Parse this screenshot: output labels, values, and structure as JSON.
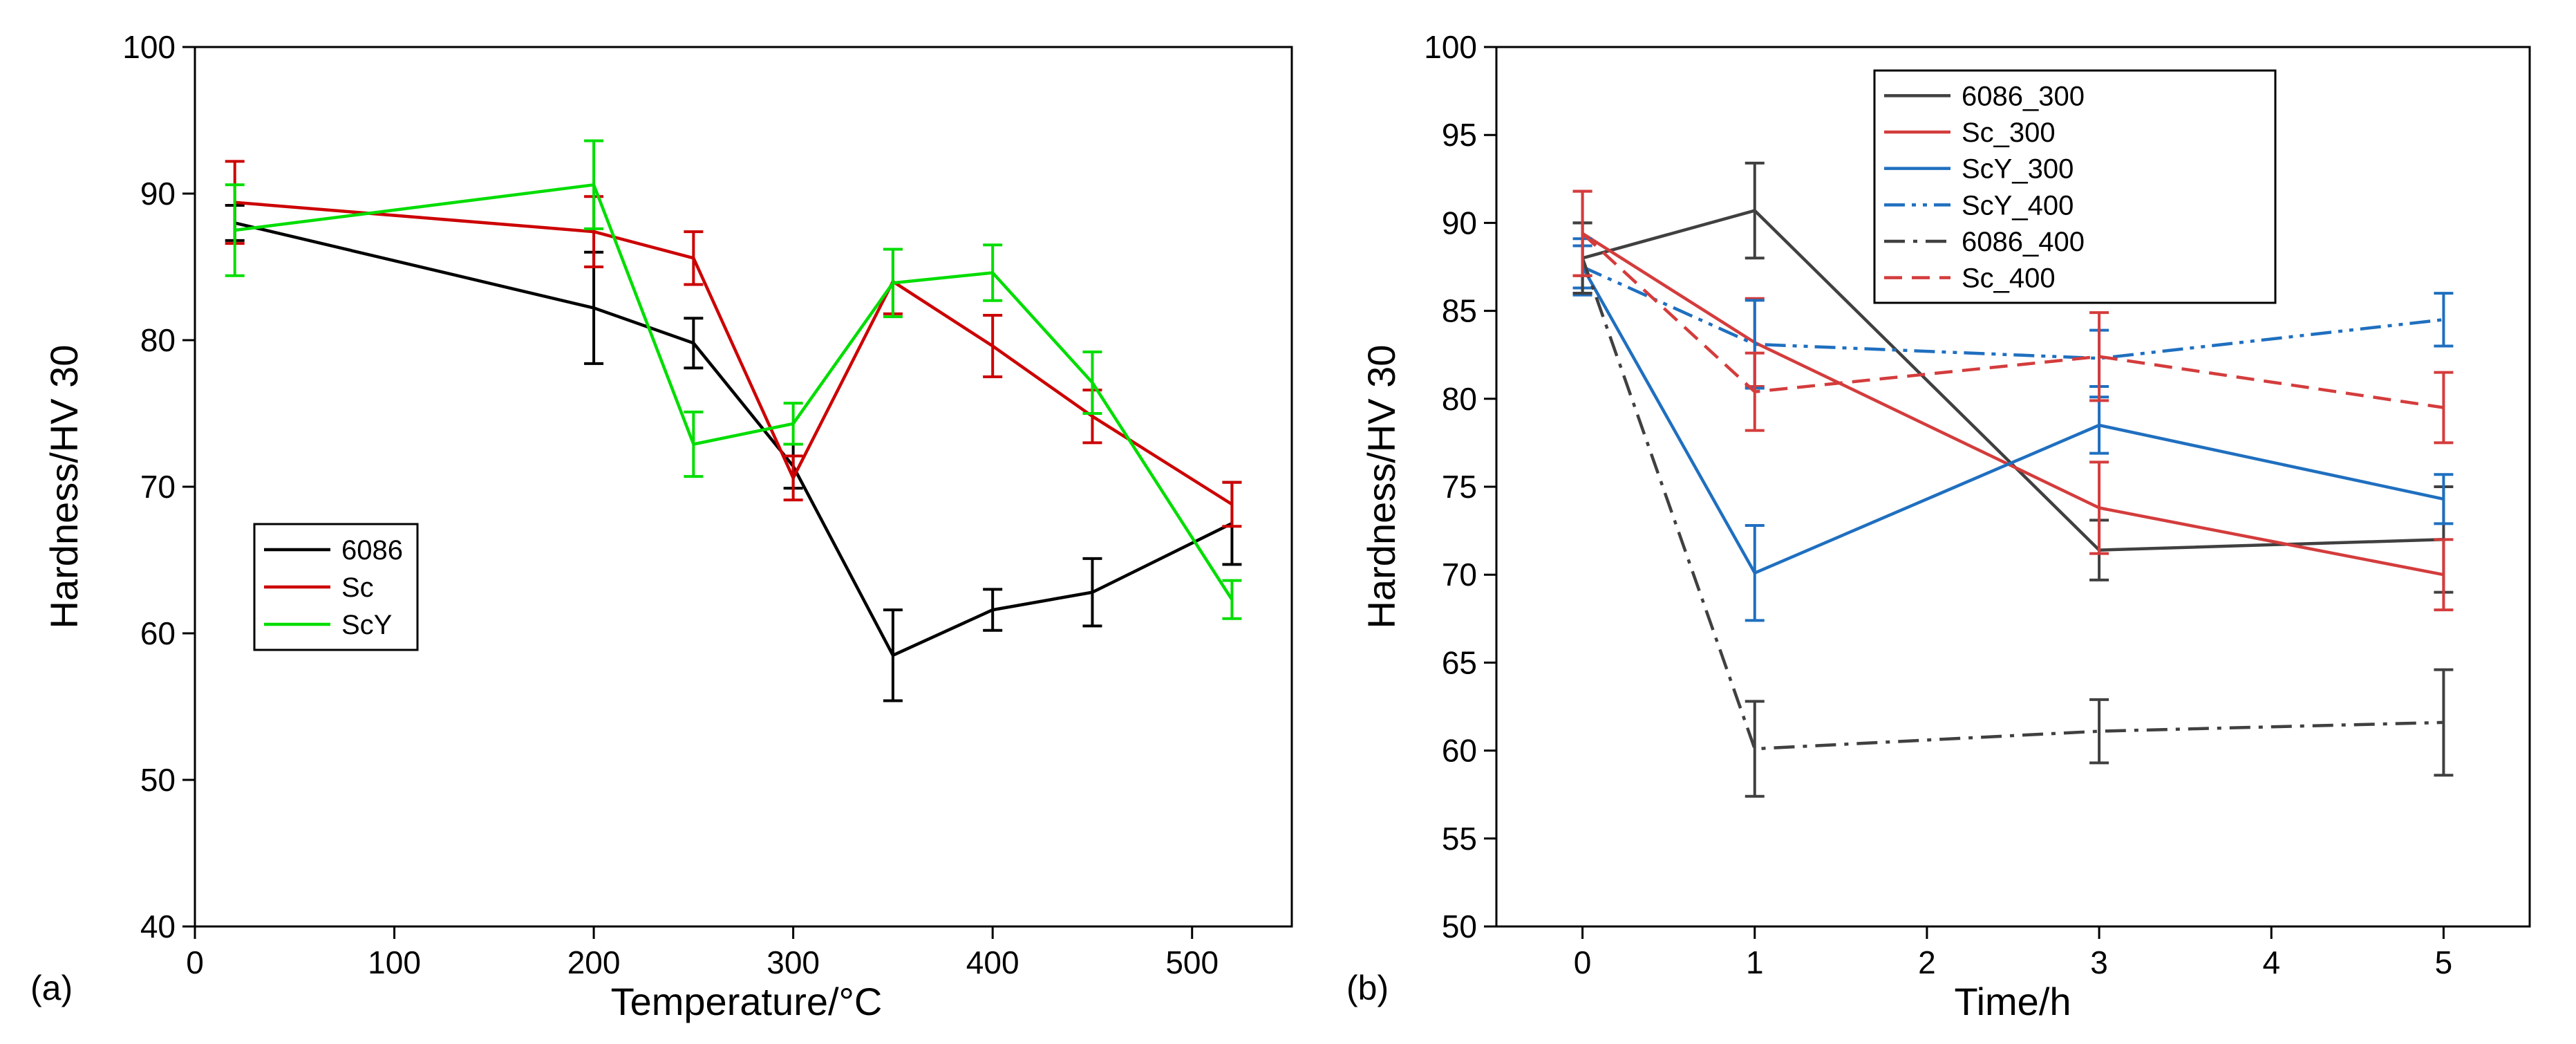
{
  "chart_data": [
    {
      "type": "line",
      "panel_label": "(a)",
      "xlabel": "Temperature/°C",
      "ylabel": "Hardness/HV 30",
      "xlim": [
        0,
        550
      ],
      "ylim": [
        40,
        100
      ],
      "xticks": [
        0,
        100,
        200,
        300,
        400,
        500
      ],
      "yticks": [
        40,
        50,
        60,
        70,
        80,
        90,
        100
      ],
      "grid": false,
      "legend_position": "bottom-left",
      "series": [
        {
          "name": "6086",
          "color": "#000000",
          "dash": "solid",
          "x": [
            20,
            200,
            250,
            300,
            350,
            400,
            450,
            520
          ],
          "y": [
            88.0,
            82.2,
            79.8,
            71.4,
            58.5,
            61.6,
            62.8,
            67.5
          ],
          "err": [
            1.2,
            3.8,
            1.7,
            1.5,
            3.1,
            1.4,
            2.3,
            2.8
          ]
        },
        {
          "name": "Sc",
          "color": "#cc0000",
          "dash": "solid",
          "x": [
            20,
            200,
            250,
            300,
            350,
            400,
            450,
            520
          ],
          "y": [
            89.4,
            87.4,
            85.6,
            70.6,
            84.0,
            79.6,
            74.8,
            68.8
          ],
          "err": [
            2.8,
            2.4,
            1.8,
            1.5,
            2.2,
            2.1,
            1.8,
            1.5
          ]
        },
        {
          "name": "ScY",
          "color": "#00dd00",
          "dash": "solid",
          "x": [
            20,
            200,
            250,
            300,
            350,
            400,
            450,
            520
          ],
          "y": [
            87.5,
            90.6,
            72.9,
            74.3,
            83.9,
            84.6,
            77.1,
            62.3
          ],
          "err": [
            3.1,
            3.0,
            2.2,
            1.4,
            2.3,
            1.9,
            2.1,
            1.3
          ]
        }
      ]
    },
    {
      "type": "line",
      "panel_label": "(b)",
      "xlabel": "Time/h",
      "ylabel": "Hardness/HV 30",
      "xlim": [
        -0.5,
        5.5
      ],
      "ylim": [
        50,
        100
      ],
      "xticks": [
        0,
        1,
        2,
        3,
        4,
        5
      ],
      "yticks": [
        50,
        55,
        60,
        65,
        70,
        75,
        80,
        85,
        90,
        95,
        100
      ],
      "grid": false,
      "legend_position": "top-left",
      "series": [
        {
          "name": "6086_300",
          "color": "#404040",
          "dash": "solid",
          "x": [
            0,
            1,
            3,
            5
          ],
          "y": [
            88.0,
            90.7,
            71.4,
            72.0
          ],
          "err": [
            2.0,
            2.7,
            1.7,
            3.0
          ]
        },
        {
          "name": "Sc_300",
          "color": "#d43c3c",
          "dash": "solid",
          "x": [
            0,
            1,
            3,
            5
          ],
          "y": [
            89.4,
            83.2,
            73.8,
            70.0
          ],
          "err": [
            2.4,
            2.5,
            2.6,
            2.0
          ]
        },
        {
          "name": "ScY_300",
          "color": "#1f6fbf",
          "dash": "solid",
          "x": [
            0,
            1,
            3,
            5
          ],
          "y": [
            87.5,
            70.1,
            78.5,
            74.3
          ],
          "err": [
            1.6,
            2.7,
            1.6,
            1.4
          ]
        },
        {
          "name": "ScY_400",
          "color": "#1f6fbf",
          "dash": "dashdotdot",
          "x": [
            0,
            1,
            3,
            5
          ],
          "y": [
            87.5,
            83.1,
            82.3,
            84.5
          ],
          "err": [
            1.2,
            2.5,
            1.6,
            1.5
          ]
        },
        {
          "name": "6086_400",
          "color": "#404040",
          "dash": "dashdot",
          "x": [
            0,
            1,
            3,
            5
          ],
          "y": [
            88.0,
            60.1,
            61.1,
            61.6
          ],
          "err": [
            2.0,
            2.7,
            1.8,
            3.0
          ]
        },
        {
          "name": "Sc_400",
          "color": "#d43c3c",
          "dash": "dash",
          "x": [
            0,
            1,
            3,
            5
          ],
          "y": [
            89.4,
            80.4,
            82.4,
            79.5
          ],
          "err": [
            2.4,
            2.2,
            2.5,
            2.0
          ]
        }
      ]
    }
  ]
}
